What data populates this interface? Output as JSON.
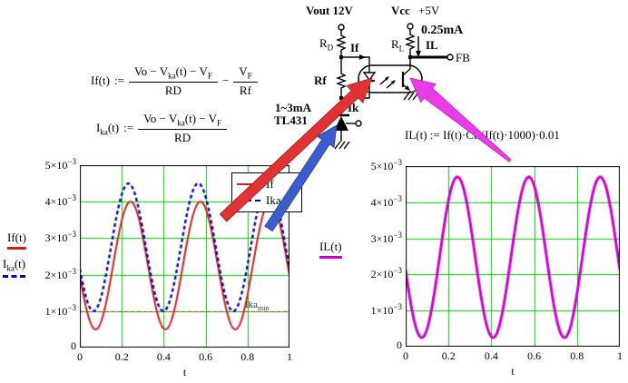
{
  "circuit": {
    "vout_label": "Vout 12V",
    "vcc_label": "Vcc",
    "vcc_value": "+5V",
    "rd": "R[D]",
    "rf": "Rf",
    "rl": "R[L]",
    "if_label": "If",
    "il_value": "0.25mA",
    "il_label": "IL",
    "fb_label": "FB",
    "ik_range": "1~3mA",
    "ik_label": "Ik",
    "tl431_label": "TL431"
  },
  "formulas": {
    "f1": {
      "lhs": "If(t)",
      "assign": ":=",
      "num": "Vo − V[ka](t) − V[F]",
      "den": "RD",
      "op": "−",
      "num2": "V[F]",
      "den2": "Rf"
    },
    "f2": {
      "lhs": "I[ka](t)",
      "assign": ":=",
      "num": "Vo − V[ka](t) − V[F]",
      "den": "RD"
    },
    "f3": "IL(t) := If(t)·Ctr(If(t)·1000)·0.01"
  },
  "annotations": {
    "arrows": [
      {
        "name": "red-arrow",
        "color": "#e03434",
        "edge": "#b01818"
      },
      {
        "name": "blue-arrow",
        "color": "#3c5ccc",
        "edge": "#23409a"
      },
      {
        "name": "magenta-arrow",
        "color": "#e83ce8",
        "edge": "#c020c0"
      }
    ]
  },
  "chart_data": [
    {
      "id": "left-plot",
      "type": "line",
      "xlabel": "t",
      "xlim": [
        0,
        1
      ],
      "ylim": [
        0,
        0.005
      ],
      "x_ticks": [
        0,
        0.2,
        0.4,
        0.6,
        0.8,
        1
      ],
      "x_tick_labels": [
        "0",
        "0.2",
        "0.4",
        "0.6",
        "0.8",
        "1"
      ],
      "y_ticks": [
        0,
        0.001,
        0.002,
        0.003,
        0.004,
        0.005
      ],
      "y_tick_labels": [
        "0",
        "1×10^−3",
        "2×10^−3",
        "3×10^−3",
        "4×10^−3",
        "5×10^−3"
      ],
      "grid": true,
      "grid_color": "#00cc00",
      "border_color": "#000000",
      "axis_trace_labels": [
        {
          "text": "If(t)",
          "color": "#cc2020",
          "style": "solid"
        },
        {
          "text": "I[ka](t)",
          "color": "#0000b0",
          "style": "dashed"
        }
      ],
      "legend": {
        "position": "top-right",
        "items": [
          {
            "label": "If",
            "color": "#cc2020",
            "style": "solid"
          },
          {
            "label": "Ika",
            "color": "#0000b0",
            "style": "dashed"
          }
        ]
      },
      "series": [
        {
          "name": "If",
          "model": "sine",
          "color": "#cc2020",
          "width": 2,
          "dash": [],
          "mean": 0.00225,
          "amplitude": 0.00175,
          "cycles": 3,
          "trough_t": 0.075,
          "min": 0.0005,
          "max": 0.004
        },
        {
          "name": "Ika",
          "model": "sine",
          "color": "#0000b0",
          "width": 2.4,
          "dash": [
            4,
            3
          ],
          "mean": 0.00275,
          "amplitude": 0.00175,
          "cycles": 3,
          "trough_t": 0.065,
          "min": 0.001,
          "max": 0.0045
        }
      ],
      "ref_line": {
        "y": 0.001,
        "label": "Ika[min]",
        "color": "#7b3a00",
        "dash": [
          4,
          3
        ]
      }
    },
    {
      "id": "right-plot",
      "type": "line",
      "xlabel": "t",
      "xlim": [
        0,
        1
      ],
      "ylim": [
        0,
        0.005
      ],
      "x_ticks": [
        0,
        0.2,
        0.4,
        0.6,
        0.8,
        1
      ],
      "x_tick_labels": [
        "0",
        "0.2",
        "0.4",
        "0.6",
        "0.8",
        "1"
      ],
      "y_ticks": [
        0,
        0.001,
        0.002,
        0.003,
        0.004,
        0.005
      ],
      "y_tick_labels": [
        "0",
        "1×10^−3",
        "2×10^−3",
        "3×10^−3",
        "4×10^−3",
        "5×10^−3"
      ],
      "grid": true,
      "grid_color": "#00cc00",
      "border_color": "#000000",
      "axis_trace_labels": [
        {
          "text": "IL(t)",
          "color": "#cc00cc",
          "style": "solid"
        }
      ],
      "series": [
        {
          "name": "IL",
          "model": "sine",
          "color": "#cc00cc",
          "width": 3,
          "dash": [],
          "mean": 0.002475,
          "amplitude": 0.002225,
          "cycles": 3,
          "trough_t": 0.075,
          "min": 0.00025,
          "max": 0.0047
        }
      ]
    }
  ]
}
